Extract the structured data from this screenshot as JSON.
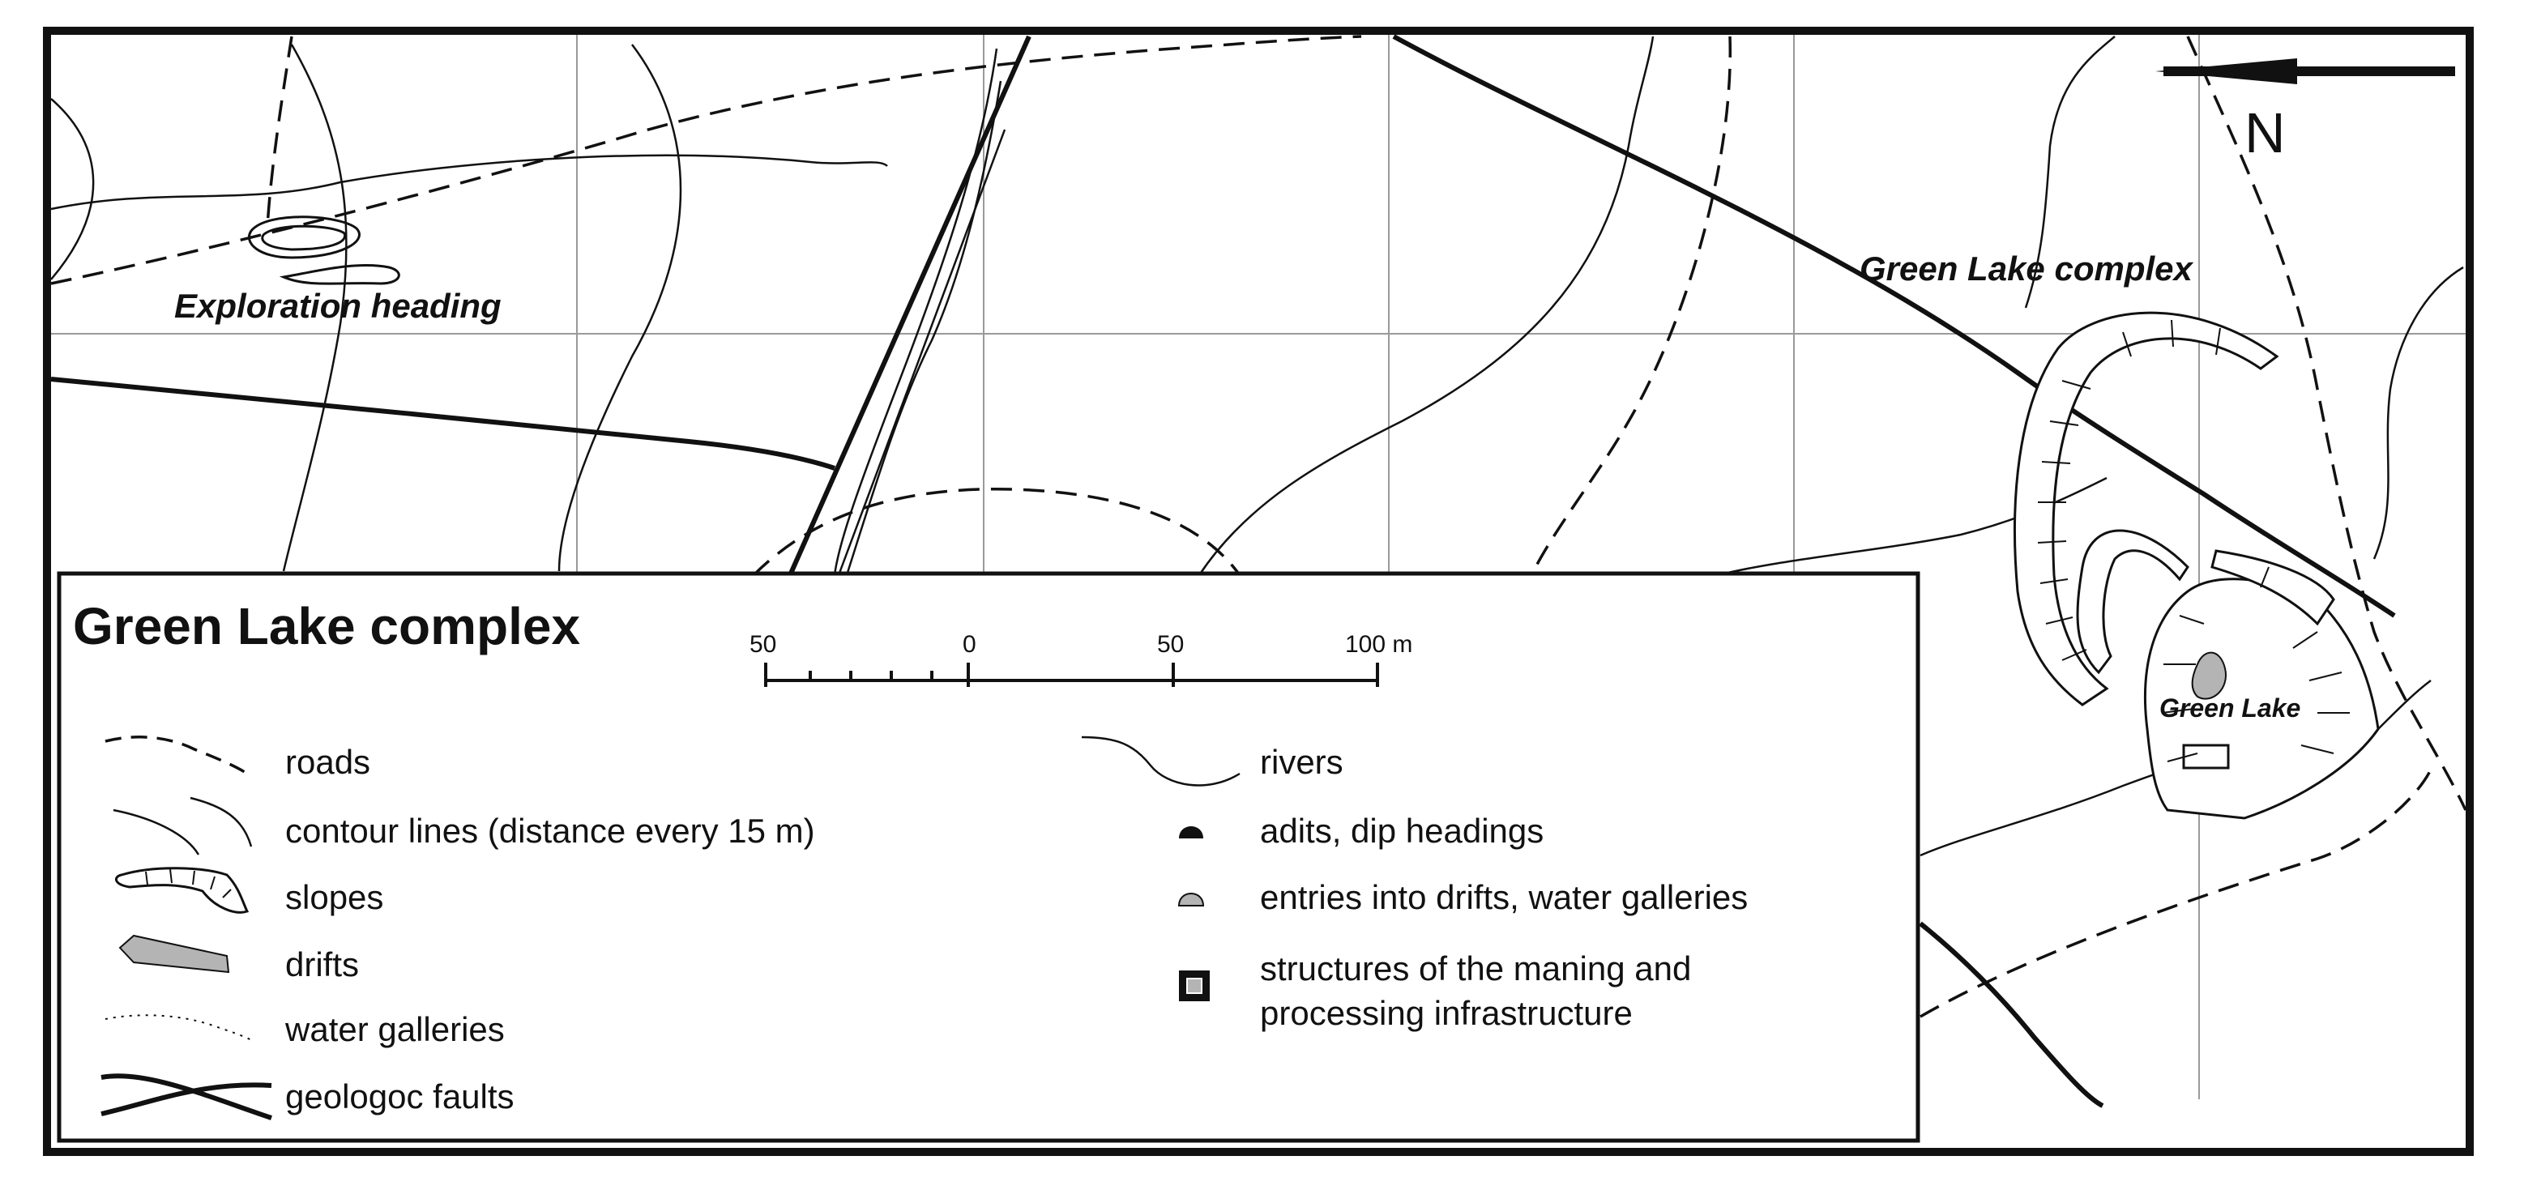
{
  "map": {
    "north_label": "N",
    "site_labels": {
      "exploration": "Exploration heading",
      "complex": "Green Lake complex",
      "lake": "Green Lake"
    }
  },
  "legend": {
    "title": "Green Lake complex",
    "scale": {
      "ticks": [
        "50",
        "0",
        "50",
        "100 m"
      ],
      "values_m": [
        -50,
        0,
        50,
        100
      ]
    },
    "items": {
      "roads": "roads",
      "contours": "contour lines (distance every 15 m)",
      "slopes": "slopes",
      "drifts": "drifts",
      "water_galleries": "water galleries",
      "faults": "geologoc faults",
      "rivers": "rivers",
      "adits": "adits, dip headings",
      "entries": "entries into drifts, water galleries",
      "structures_line1": "structures of the maning and",
      "structures_line2": "processing infrastructure"
    }
  },
  "colors": {
    "ink": "#111111",
    "grid": "#9a9a9a",
    "fill_gray": "#b4b4b4",
    "background": "#ffffff"
  }
}
